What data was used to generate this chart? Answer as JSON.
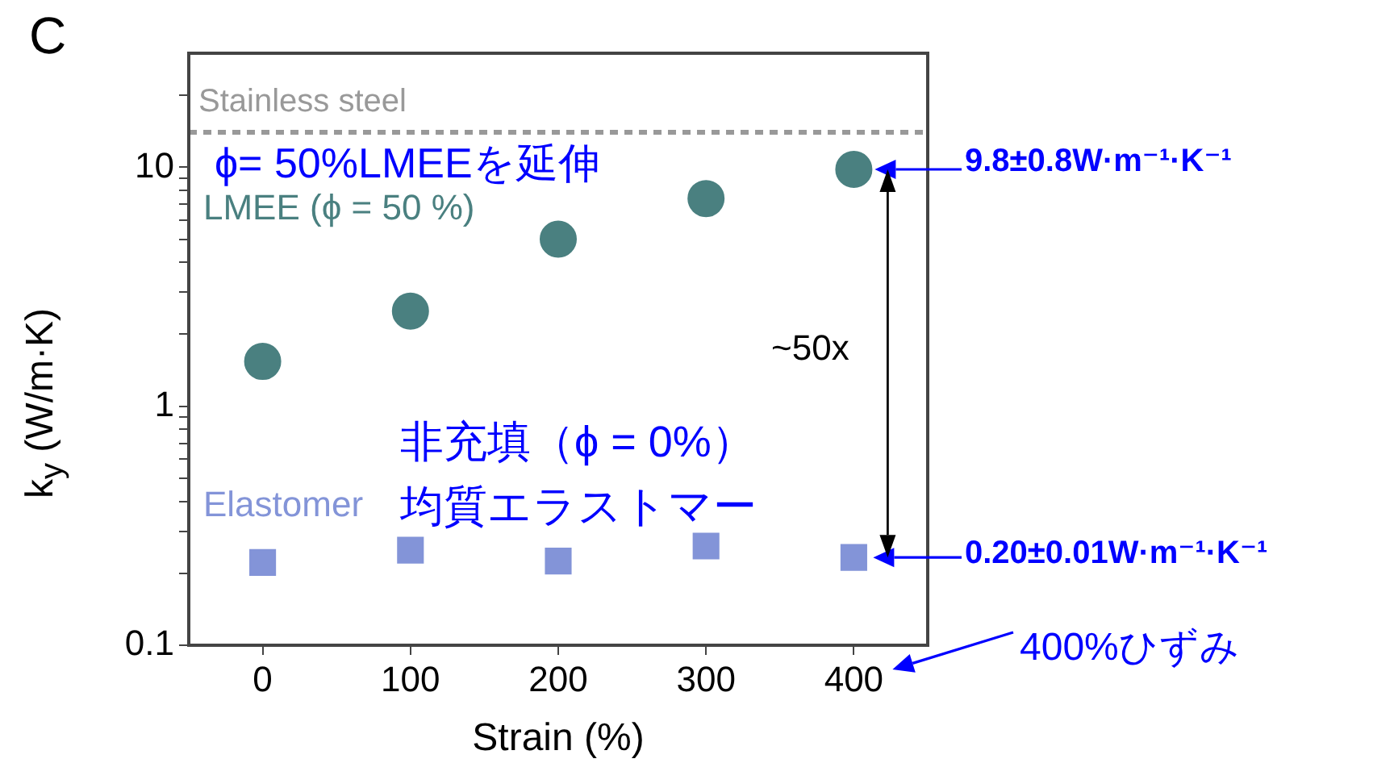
{
  "chart_data": {
    "type": "scatter",
    "title": "C",
    "xlabel": "Strain (%)",
    "ylabel": "k$_{y}$ (W/m·K)",
    "x": [
      0,
      100,
      200,
      300,
      400
    ],
    "series": [
      {
        "name": "LMEE (ϕ = 50 %)",
        "color": "#4a8080",
        "marker": "circle",
        "values": [
          1.54,
          2.5,
          5.0,
          7.4,
          9.8
        ]
      },
      {
        "name": "Elastomer",
        "color": "#8394d8",
        "marker": "square",
        "values": [
          0.222,
          0.25,
          0.225,
          0.26,
          0.233
        ]
      }
    ],
    "xlim": [
      -50,
      450
    ],
    "xticks": [
      0,
      100,
      200,
      300,
      400
    ],
    "ylim": [
      0.1,
      30
    ],
    "log": true,
    "yticks": [
      0.1,
      {
        "value": 0.2,
        "label": null
      },
      {
        "value": 0.3,
        "label": null
      },
      {
        "value": 0.4,
        "label": null
      },
      {
        "value": 0.5,
        "label": null
      },
      {
        "value": 0.6,
        "label": null
      },
      {
        "value": 0.7,
        "label": null
      },
      {
        "value": 0.8,
        "label": null
      },
      {
        "value": 0.9,
        "label": null
      },
      1,
      {
        "value": 2,
        "label": null
      },
      {
        "value": 3,
        "label": null
      },
      {
        "value": 4,
        "label": null
      },
      {
        "value": 5,
        "label": null
      },
      {
        "value": 6,
        "label": null
      },
      {
        "value": 7,
        "label": null
      },
      {
        "value": 8,
        "label": null
      },
      {
        "value": 9,
        "label": null
      },
      10,
      {
        "value": 20,
        "label": null
      }
    ],
    "ref_lines": [
      {
        "axis": "y",
        "value": 14,
        "label": "Stainless steel",
        "color": "#999999",
        "line_style": "dashed"
      }
    ],
    "annotations": [
      "ϕ= 50%LMEEを延伸",
      "非充填（ϕ = 0%）",
      "均質エラストマー",
      "~50x",
      "9.8±0.8W·m⁻¹·K⁻¹",
      "0.20±0.01W·m⁻¹·K⁻¹",
      "400%ひずみ"
    ]
  }
}
